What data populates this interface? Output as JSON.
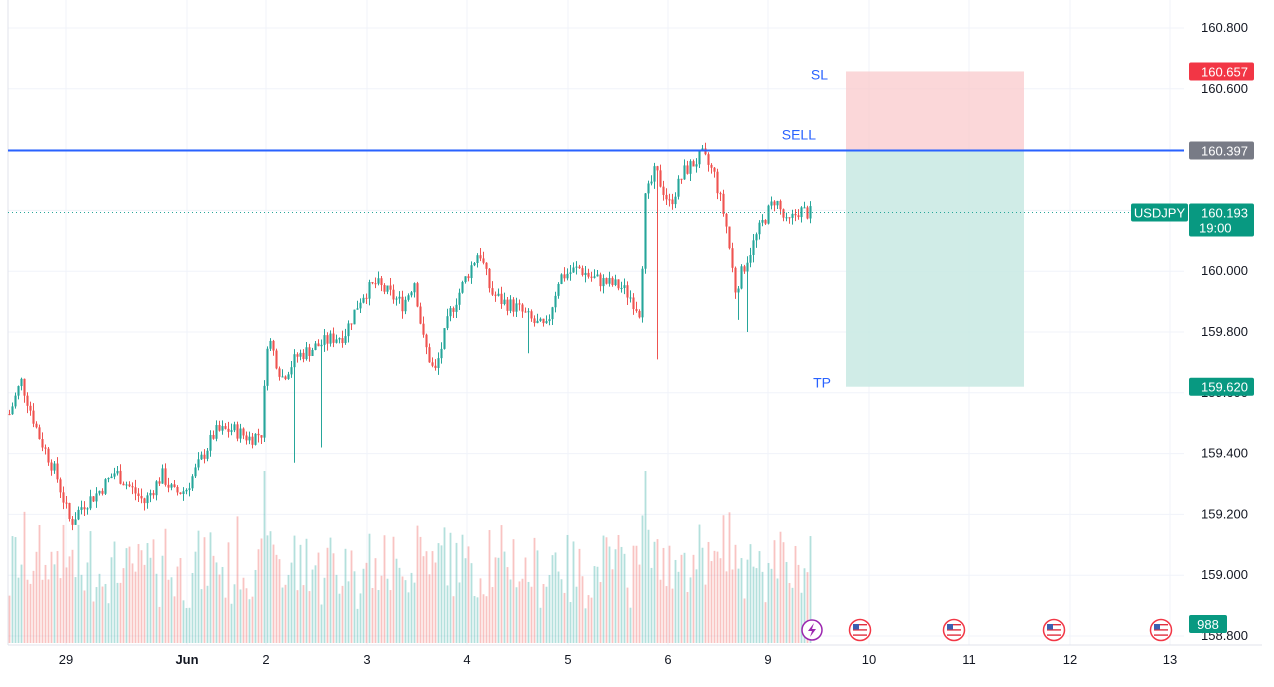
{
  "chart_data": {
    "type": "candlestick",
    "symbol": "USDJPY",
    "y_ticks": [
      "160.800",
      "160.600",
      "160.400",
      "160.200",
      "160.000",
      "159.800",
      "159.600",
      "159.400",
      "159.200",
      "159.000",
      "158.800"
    ],
    "ylim": [
      158.78,
      160.86
    ],
    "x_ticks": [
      "29",
      "Jun",
      "2",
      "3",
      "4",
      "5",
      "6",
      "9",
      "10",
      "11",
      "12",
      "13"
    ],
    "last_price": {
      "label": "USDJPY",
      "value": "160.193",
      "countdown": "19:00"
    },
    "volume_last": "988",
    "position": {
      "side": "short",
      "sell": {
        "label": "SELL",
        "value": "160.397"
      },
      "sl": {
        "label": "SL",
        "value": "160.657"
      },
      "tp": {
        "label": "TP",
        "value": "159.620"
      }
    },
    "events": [
      {
        "type": "lightning-icon",
        "color": "#9c27b0"
      },
      {
        "type": "us-flag-icon"
      },
      {
        "type": "us-flag-icon"
      },
      {
        "type": "us-flag-icon"
      },
      {
        "type": "us-flag-icon"
      }
    ],
    "price_path": [
      [
        0,
        159.53
      ],
      [
        0.01,
        159.64
      ],
      [
        0.025,
        159.46
      ],
      [
        0.04,
        159.33
      ],
      [
        0.052,
        159.17
      ],
      [
        0.062,
        159.23
      ],
      [
        0.075,
        159.27
      ],
      [
        0.09,
        159.34
      ],
      [
        0.1,
        159.3
      ],
      [
        0.115,
        159.24
      ],
      [
        0.13,
        159.33
      ],
      [
        0.14,
        159.27
      ],
      [
        0.15,
        159.28
      ],
      [
        0.162,
        159.37
      ],
      [
        0.175,
        159.47
      ],
      [
        0.19,
        159.48
      ],
      [
        0.205,
        159.45
      ],
      [
        0.215,
        159.47
      ],
      [
        0.22,
        159.79
      ],
      [
        0.232,
        159.65
      ],
      [
        0.245,
        159.72
      ],
      [
        0.26,
        159.75
      ],
      [
        0.275,
        159.78
      ],
      [
        0.285,
        159.79
      ],
      [
        0.3,
        159.92
      ],
      [
        0.312,
        159.96
      ],
      [
        0.322,
        159.93
      ],
      [
        0.335,
        159.89
      ],
      [
        0.345,
        159.97
      ],
      [
        0.352,
        159.78
      ],
      [
        0.362,
        159.66
      ],
      [
        0.375,
        159.86
      ],
      [
        0.39,
        159.99
      ],
      [
        0.4,
        160.07
      ],
      [
        0.41,
        159.93
      ],
      [
        0.42,
        159.9
      ],
      [
        0.432,
        159.88
      ],
      [
        0.447,
        159.83
      ],
      [
        0.457,
        159.81
      ],
      [
        0.468,
        159.98
      ],
      [
        0.485,
        160.01
      ],
      [
        0.495,
        159.98
      ],
      [
        0.51,
        159.96
      ],
      [
        0.52,
        159.95
      ],
      [
        0.528,
        159.92
      ],
      [
        0.538,
        159.86
      ],
      [
        0.54,
        160.22
      ],
      [
        0.55,
        160.33
      ],
      [
        0.562,
        160.22
      ],
      [
        0.575,
        160.33
      ],
      [
        0.59,
        160.38
      ],
      [
        0.6,
        160.32
      ],
      [
        0.61,
        160.16
      ],
      [
        0.618,
        159.94
      ],
      [
        0.63,
        160.06
      ],
      [
        0.64,
        160.15
      ],
      [
        0.652,
        160.24
      ],
      [
        0.662,
        160.15
      ],
      [
        0.672,
        160.2
      ],
      [
        0.682,
        160.19
      ]
    ],
    "volume_max": 988
  },
  "colors": {
    "up": "#26a69a",
    "down": "#ef5350",
    "sell_line": "#2962ff",
    "sl_zone": "#f9c9cc",
    "tp_zone": "#c8e9e3",
    "sl_tag": "#f23645",
    "sell_tag": "#787b86",
    "tp_tag": "#089981",
    "last_tag": "#089981",
    "grid": "#f0f3fa"
  }
}
